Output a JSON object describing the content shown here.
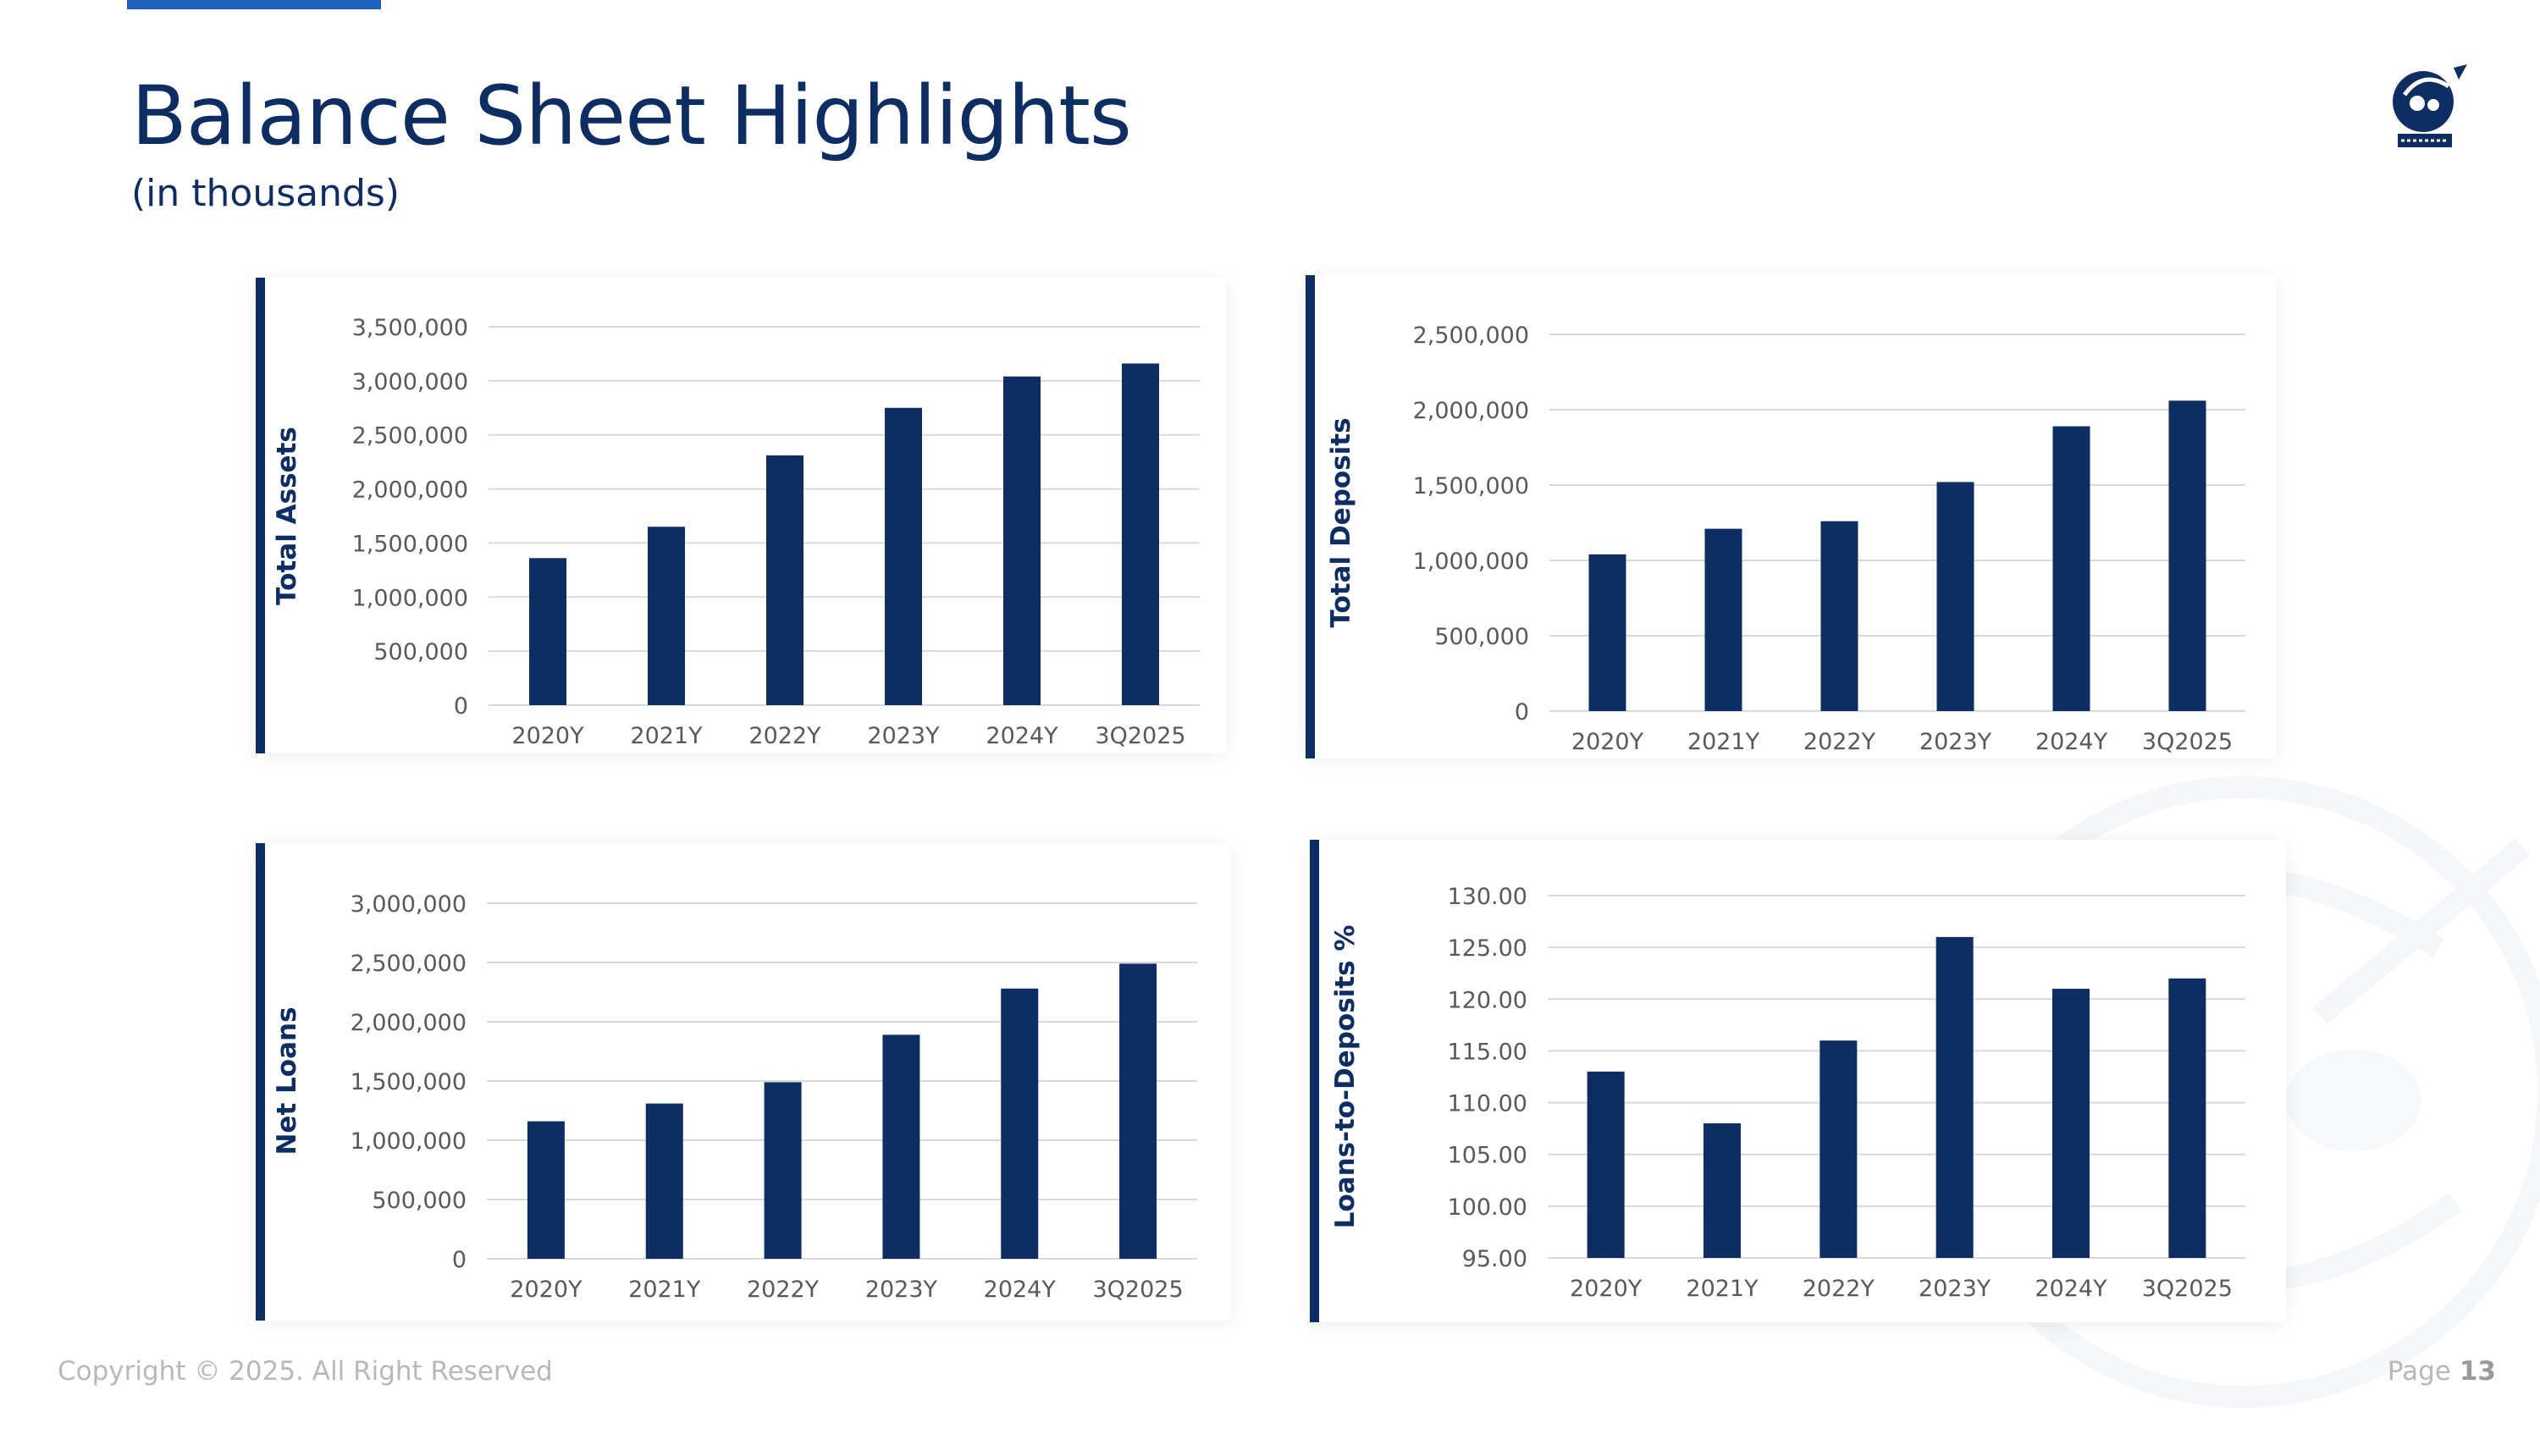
{
  "header": {
    "title": "Balance Sheet Highlights",
    "subtitle": "(in thousands)"
  },
  "footer": {
    "copyright": "Copyright © 2025. All Right Reserved",
    "page_label": "Page",
    "page_number": "13"
  },
  "colors": {
    "bar": "#0d2d63",
    "accent": "#1f5fbf",
    "grid": "#d9d9d9",
    "tick_text": "#595959"
  },
  "icons": {
    "logo": "pirate-logo-icon",
    "watermark": "pirate-watermark-icon"
  },
  "chart_data": [
    {
      "type": "bar",
      "title": "",
      "ylabel": "Total Assets",
      "categories": [
        "2020Y",
        "2021Y",
        "2022Y",
        "2023Y",
        "2024Y",
        "3Q2025"
      ],
      "values": [
        1360000,
        1650000,
        2310000,
        2750000,
        3040000,
        3160000
      ],
      "ylim": [
        0,
        3500000
      ],
      "yticks": [
        "0",
        "500,000",
        "1,000,000",
        "1,500,000",
        "2,000,000",
        "2,500,000",
        "3,000,000",
        "3,500,000"
      ],
      "grid": true
    },
    {
      "type": "bar",
      "title": "",
      "ylabel": "Total Deposits",
      "categories": [
        "2020Y",
        "2021Y",
        "2022Y",
        "2023Y",
        "2024Y",
        "3Q2025"
      ],
      "values": [
        1040000,
        1210000,
        1260000,
        1520000,
        1890000,
        2060000
      ],
      "ylim": [
        0,
        2500000
      ],
      "yticks": [
        "0",
        "500,000",
        "1,000,000",
        "1,500,000",
        "2,000,000",
        "2,500,000"
      ],
      "grid": true
    },
    {
      "type": "bar",
      "title": "",
      "ylabel": "Net Loans",
      "categories": [
        "2020Y",
        "2021Y",
        "2022Y",
        "2023Y",
        "2024Y",
        "3Q2025"
      ],
      "values": [
        1160000,
        1310000,
        1490000,
        1890000,
        2280000,
        2490000
      ],
      "ylim": [
        0,
        3000000
      ],
      "yticks": [
        "0",
        "500,000",
        "1,000,000",
        "1,500,000",
        "2,000,000",
        "2,500,000",
        "3,000,000"
      ],
      "grid": true
    },
    {
      "type": "bar",
      "title": "",
      "ylabel": "Loans-to-Deposits %",
      "categories": [
        "2020Y",
        "2021Y",
        "2022Y",
        "2023Y",
        "2024Y",
        "3Q2025"
      ],
      "values": [
        113.0,
        108.0,
        116.0,
        126.0,
        121.0,
        122.0
      ],
      "ylim": [
        95,
        130
      ],
      "yticks": [
        "95.00",
        "100.00",
        "105.00",
        "110.00",
        "115.00",
        "120.00",
        "125.00",
        "130.00"
      ],
      "grid": true
    }
  ]
}
